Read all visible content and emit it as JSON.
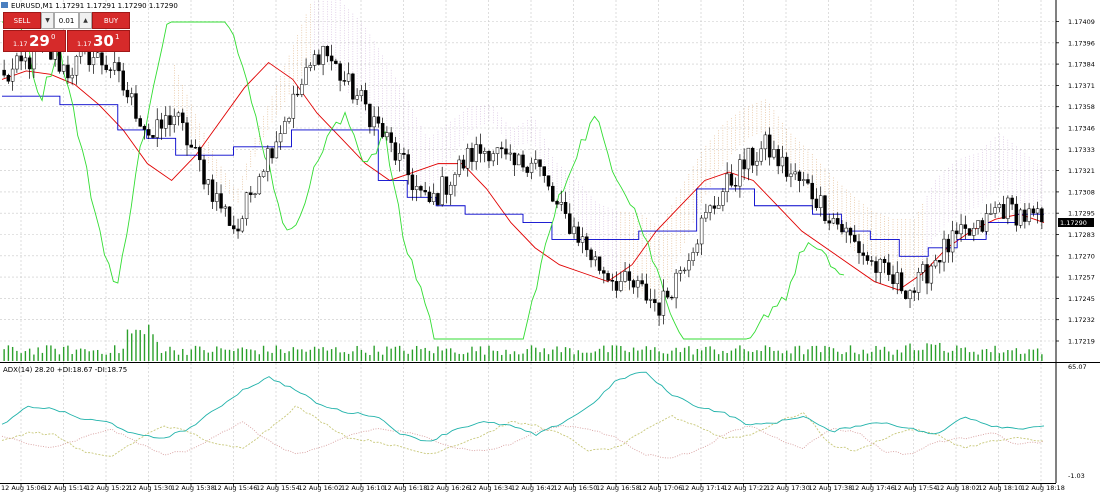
{
  "header": {
    "symbol_line": "EURUSD,M1  1.17291 1.17291 1.17290 1.17290",
    "adx_line": "ADX(14) 28.20 +DI:18.67 -DI:18.75"
  },
  "trade_panel": {
    "sell_label": "SELL",
    "buy_label": "BUY",
    "volume": "0.01",
    "bid": {
      "prefix": "1.17",
      "big": "29",
      "sup": "0"
    },
    "ask": {
      "prefix": "1.17",
      "big": "30",
      "sup": "1"
    }
  },
  "colors": {
    "bull_candle": "#ffffff",
    "bear_candle": "#000000",
    "tenkan": "#e00000",
    "kijun": "#0000cc",
    "chikou": "#33dd33",
    "kumo_a": "#d9a36b",
    "kumo_b": "#c9a9d6",
    "volume": "#2ca02c",
    "adx": "#20b2aa",
    "plus_di": "#c8c87a",
    "minus_di": "#d8a0a0",
    "price_tag_bg": "#000000",
    "price_tag_text": "#ffffff"
  },
  "chart_data": [
    {
      "type": "candlestick",
      "title": "EURUSD,M1",
      "price_axis": {
        "ylim": [
          1.17212,
          1.17415
        ],
        "ticks": [
          "1.17409",
          "1.17396",
          "1.17384",
          "1.17371",
          "1.17358",
          "1.17346",
          "1.17333",
          "1.17321",
          "1.17308",
          "1.17295",
          "1.17283",
          "1.17270",
          "1.17257",
          "1.17245",
          "1.17232",
          "1.17219"
        ]
      },
      "current_price": "1.17290",
      "grid": true,
      "time_labels": [
        "12 Aug 15:06",
        "12 Aug 15:14",
        "12 Aug 15:22",
        "12 Aug 15:30",
        "12 Aug 15:38",
        "12 Aug 15:46",
        "12 Aug 15:54",
        "12 Aug 16:02",
        "12 Aug 16:10",
        "12 Aug 16:18",
        "12 Aug 16:26",
        "12 Aug 16:34",
        "12 Aug 16:42",
        "12 Aug 16:50",
        "12 Aug 16:58",
        "12 Aug 17:06",
        "12 Aug 17:14",
        "12 Aug 17:22",
        "12 Aug 17:30",
        "12 Aug 17:38",
        "12 Aug 17:46",
        "12 Aug 17:54",
        "12 Aug 18:02",
        "12 Aug 18:10",
        "12 Aug 18:18"
      ],
      "close_anchors": [
        1.17375,
        1.17385,
        1.17392,
        1.1738,
        1.1739,
        1.17383,
        1.17362,
        1.1734,
        1.17355,
        1.1733,
        1.17305,
        1.17285,
        1.1732,
        1.17345,
        1.1737,
        1.17395,
        1.17375,
        1.1736,
        1.1734,
        1.1732,
        1.173,
        1.17315,
        1.1733,
        1.17335,
        1.17322,
        1.1733,
        1.173,
        1.17285,
        1.17265,
        1.17255,
        1.1725,
        1.1724,
        1.17265,
        1.1729,
        1.1731,
        1.17325,
        1.17335,
        1.1732,
        1.1731,
        1.17295,
        1.1728,
        1.17265,
        1.17255,
        1.1725,
        1.1727,
        1.1728,
        1.17285,
        1.173,
        1.17295,
        1.1729
      ],
      "ichimoku": {
        "tenkan": [
          1.17375,
          1.1738,
          1.17378,
          1.17372,
          1.1736,
          1.17345,
          1.17325,
          1.17315,
          1.1733,
          1.1735,
          1.1737,
          1.17385,
          1.17375,
          1.17355,
          1.1734,
          1.17325,
          1.17315,
          1.1732,
          1.17325,
          1.17325,
          1.1731,
          1.1729,
          1.17275,
          1.17265,
          1.1726,
          1.17255,
          1.17265,
          1.17285,
          1.173,
          1.17315,
          1.1732,
          1.17315,
          1.173,
          1.17285,
          1.17275,
          1.17265,
          1.17255,
          1.1725,
          1.1726,
          1.17275,
          1.17285,
          1.17292,
          1.17295,
          1.1729
        ],
        "kijun": [
          1.17365,
          1.17365,
          1.1736,
          1.1736,
          1.17345,
          1.1734,
          1.1733,
          1.1733,
          1.17335,
          1.17335,
          1.17345,
          1.17345,
          1.17345,
          1.17315,
          1.17305,
          1.173,
          1.17295,
          1.17295,
          1.1729,
          1.1728,
          1.1728,
          1.1728,
          1.17285,
          1.17285,
          1.1731,
          1.1731,
          1.173,
          1.173,
          1.17295,
          1.17285,
          1.1728,
          1.1727,
          1.17275,
          1.1728,
          1.1729,
          1.17295,
          1.17295
        ]
      }
    },
    {
      "type": "line",
      "title": "ADX(14)",
      "series": [
        {
          "name": "ADX",
          "value": 28.2
        },
        {
          "name": "+DI",
          "value": 18.67
        },
        {
          "name": "-DI",
          "value": 18.75
        }
      ],
      "ylim": [
        -1.03,
        65.07
      ],
      "tick_labels": [
        "65.07",
        "-1.03"
      ]
    }
  ]
}
